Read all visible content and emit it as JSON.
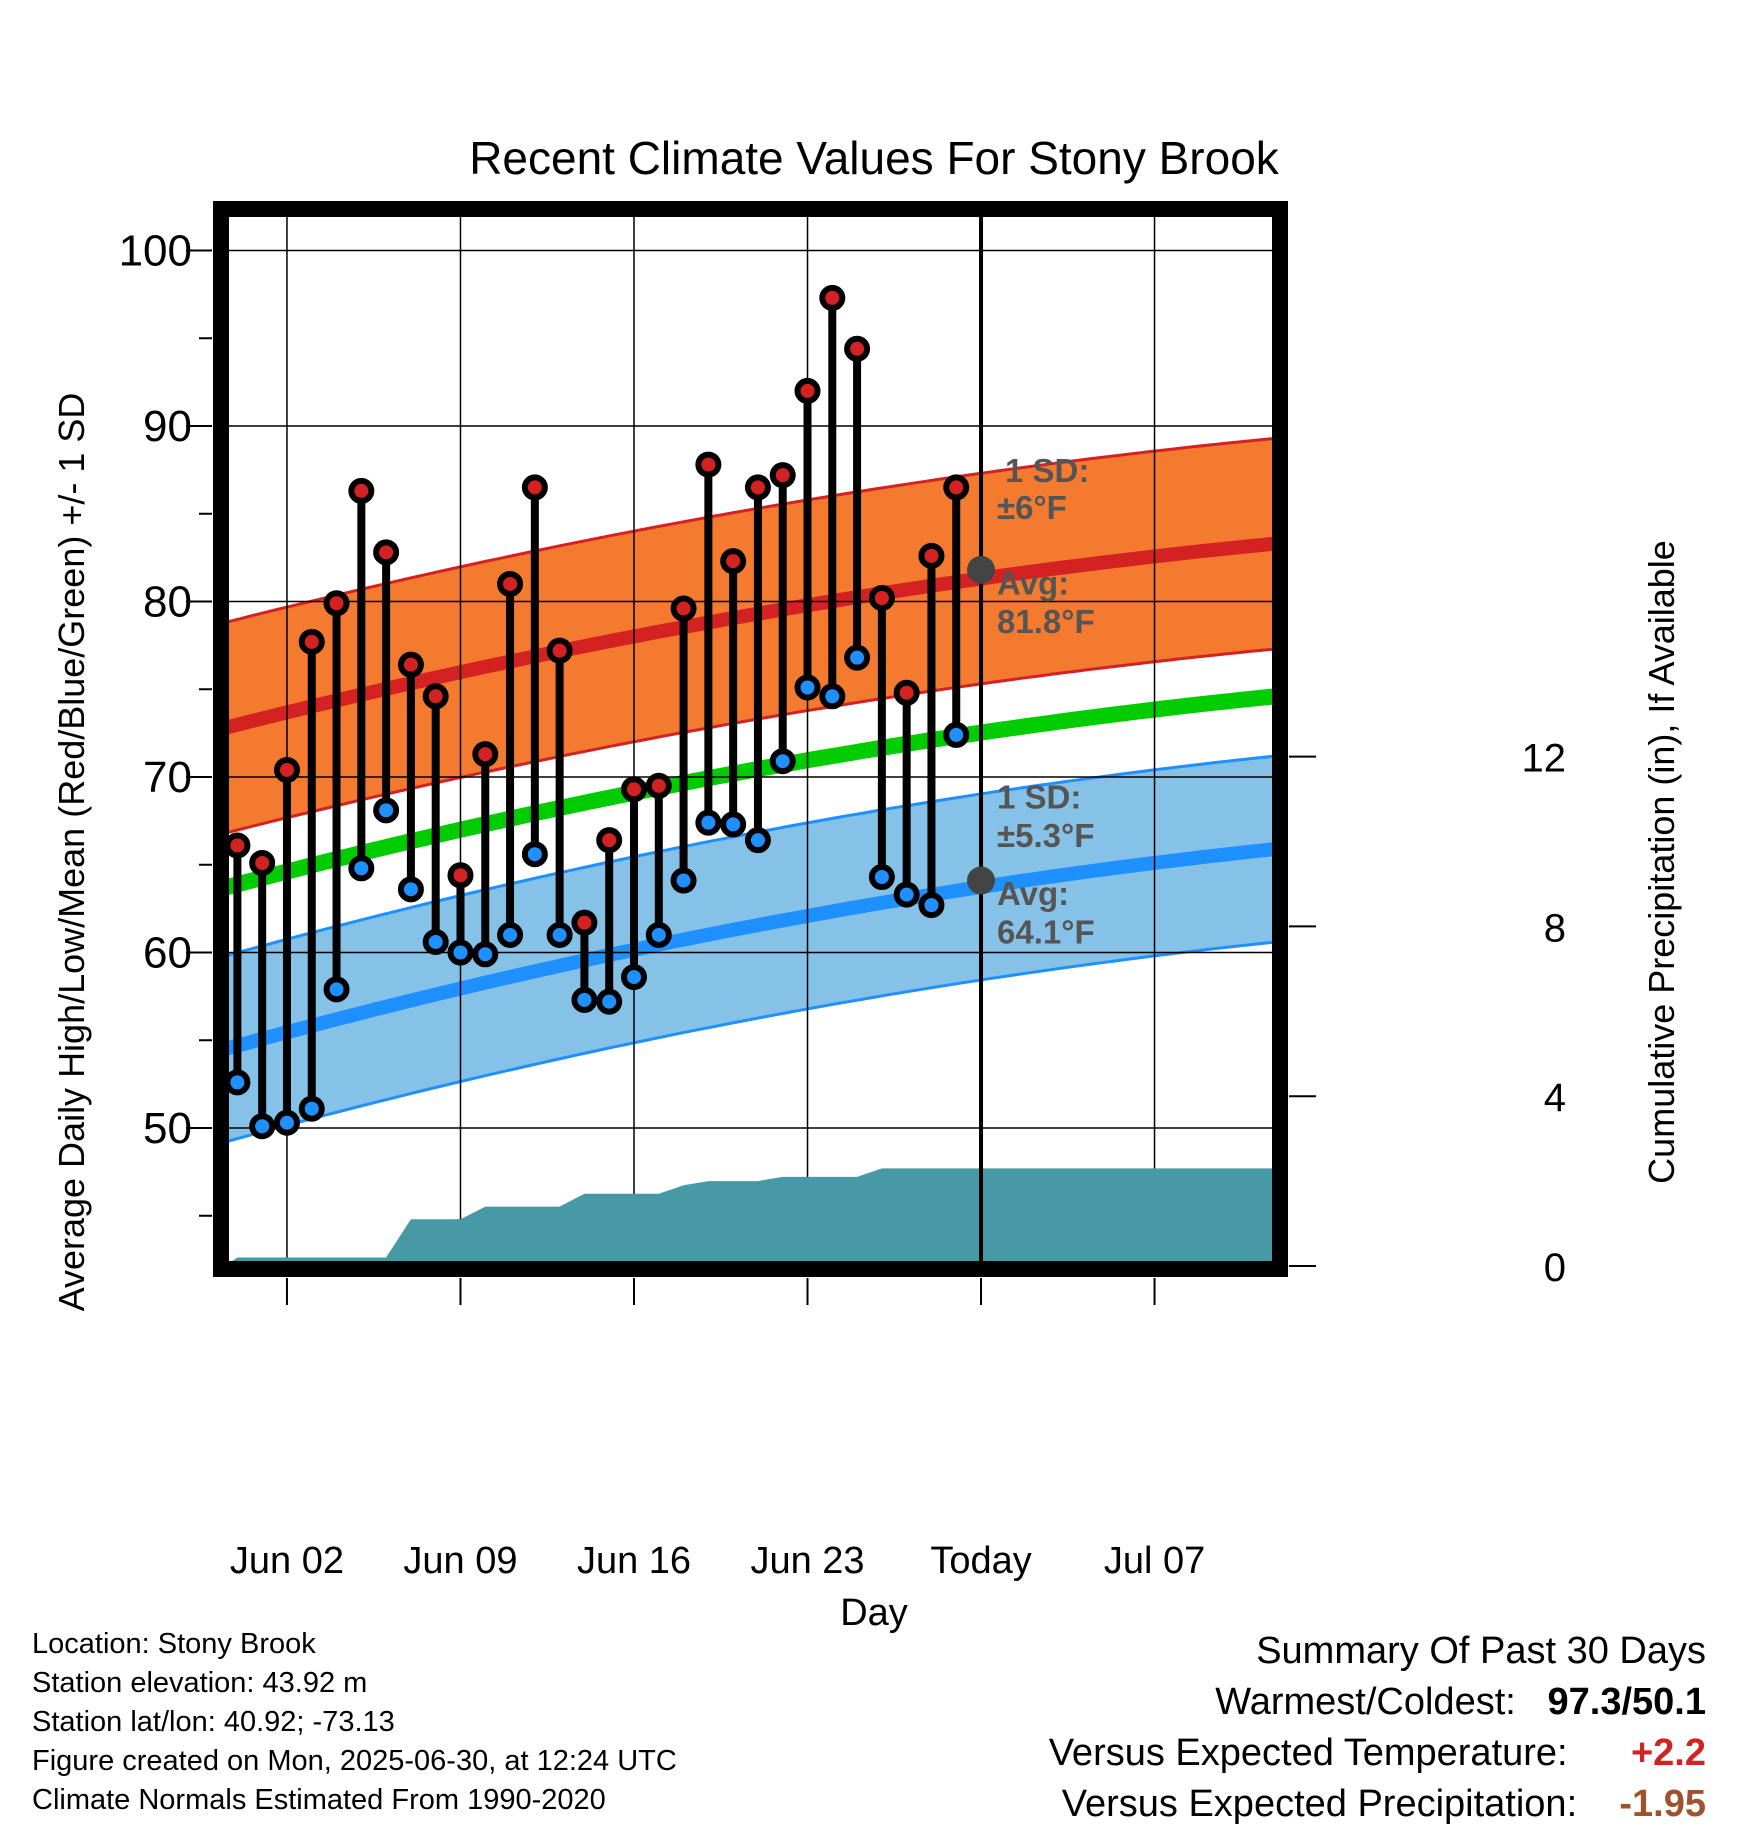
{
  "chart_data": {
    "type": "line",
    "title": "Recent Climate Values For Stony Brook",
    "xlabel": "Day",
    "ylabel": "Average Daily High/Low/Mean (Red/Blue/Green) +/- 1 SD",
    "y2label": "Cumulative Precipitation (in), If Available",
    "ylim": [
      42,
      102
    ],
    "y2lim": [
      0,
      24
    ],
    "xlim": [
      -0.5,
      41.9
    ],
    "x_ticks": [
      {
        "day": 2,
        "label": "Jun 02"
      },
      {
        "day": 9,
        "label": "Jun 09"
      },
      {
        "day": 16,
        "label": "Jun 16"
      },
      {
        "day": 23,
        "label": "Jun 23"
      },
      {
        "day": 30,
        "label": "Today"
      },
      {
        "day": 37,
        "label": "Jul 07"
      }
    ],
    "y_ticks": [
      50,
      60,
      70,
      80,
      90,
      100
    ],
    "y2_ticks": [
      0,
      4,
      8,
      12
    ],
    "grid": true,
    "today_day": 30,
    "colors": {
      "high": "#d42222",
      "low": "#1e90ff",
      "mean": "#00cc00",
      "high_band": "#f47a30",
      "low_band": "#86c1e7",
      "precip": "#479aa5",
      "annotation": "#555555",
      "today_marker": "#444444"
    },
    "normals": {
      "days": [
        -0.5,
        41.9
      ],
      "high_avg": [
        72.8,
        83.3
      ],
      "high_sd": 6.0,
      "low_avg": [
        54.5,
        65.9
      ],
      "low_sd": 5.3,
      "mean_avg": [
        63.7,
        74.6
      ]
    },
    "series": [
      {
        "name": "High",
        "days": [
          0,
          1,
          2,
          3,
          4,
          5,
          6,
          7,
          8,
          9,
          10,
          11,
          12,
          13,
          14,
          15,
          16,
          17,
          18,
          19,
          20,
          21,
          22,
          23,
          24,
          25,
          26,
          27,
          28,
          29
        ],
        "values": [
          66.1,
          65.1,
          70.4,
          77.7,
          79.9,
          86.3,
          82.8,
          76.4,
          74.6,
          64.4,
          71.3,
          81.0,
          86.5,
          77.2,
          61.7,
          66.4,
          69.3,
          69.5,
          79.6,
          87.8,
          82.3,
          86.5,
          87.2,
          92.0,
          97.3,
          94.4,
          80.2,
          74.8,
          82.6,
          86.5
        ]
      },
      {
        "name": "Low",
        "days": [
          0,
          1,
          2,
          3,
          4,
          5,
          6,
          7,
          8,
          9,
          10,
          11,
          12,
          13,
          14,
          15,
          16,
          17,
          18,
          19,
          20,
          21,
          22,
          23,
          24,
          25,
          26,
          27,
          28,
          29
        ],
        "values": [
          52.6,
          50.1,
          50.3,
          51.1,
          57.9,
          64.8,
          68.1,
          63.6,
          60.6,
          60.0,
          59.9,
          61.0,
          65.6,
          61.0,
          57.3,
          57.2,
          58.6,
          61.0,
          64.1,
          67.4,
          67.3,
          66.4,
          70.9,
          75.1,
          74.6,
          76.8,
          64.3,
          63.3,
          62.7,
          72.4
        ]
      },
      {
        "name": "Cumulative Precipitation",
        "days": [
          -0.5,
          0,
          1,
          2,
          3,
          4,
          5,
          6,
          7,
          8,
          9,
          10,
          11,
          12,
          13,
          14,
          15,
          16,
          17,
          18,
          19,
          20,
          21,
          22,
          23,
          24,
          25,
          26,
          27,
          28,
          29,
          41.9
        ],
        "values": [
          0,
          0.2,
          0.2,
          0.2,
          0.2,
          0.2,
          0.2,
          0.2,
          1.1,
          1.1,
          1.1,
          1.4,
          1.4,
          1.4,
          1.4,
          1.7,
          1.7,
          1.7,
          1.7,
          1.9,
          2.0,
          2.0,
          2.0,
          2.1,
          2.1,
          2.1,
          2.1,
          2.3,
          2.3,
          2.3,
          2.3,
          2.3
        ]
      }
    ],
    "annotations": {
      "high_sd_label": [
        "1 SD:",
        "±6°F"
      ],
      "high_avg_label": [
        "Avg:",
        "81.8°F"
      ],
      "low_sd_label": [
        "1 SD:",
        "±5.3°F"
      ],
      "low_avg_label": [
        "Avg:",
        "64.1°F"
      ],
      "today_high_avg": 81.8,
      "today_low_avg": 64.1,
      "window_label": [
        "30",
        "Days"
      ]
    }
  },
  "info": {
    "location": "Location: Stony Brook",
    "elevation": "Station elevation: 43.92 m",
    "latlon": "Station lat/lon: 40.92; -73.13",
    "created": "Figure created on Mon, 2025-06-30, at 12:24 UTC",
    "normals": "Climate Normals Estimated From 1990-2020"
  },
  "summary": {
    "heading": "Summary Of Past 30 Days",
    "warm_cold_label": "Warmest/Coldest:",
    "warm_cold_value": "97.3/50.1",
    "temp_label": "Versus Expected Temperature:",
    "temp_value": "+2.2",
    "temp_color": "#d42222",
    "precip_label": "Versus Expected Precipitation:",
    "precip_value": "-1.95",
    "precip_color": "#a0522d"
  }
}
